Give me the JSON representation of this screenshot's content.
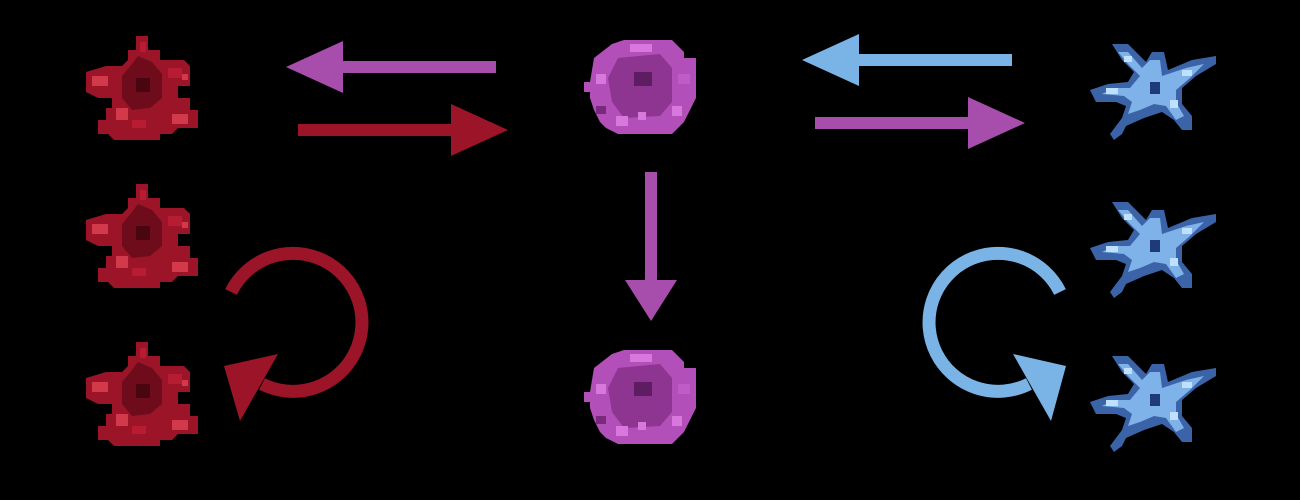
{
  "colors": {
    "background": "#000000",
    "red": "#9b1428",
    "red_dark": "#6e0c1b",
    "red_mid": "#b81c32",
    "red_light": "#d23a4c",
    "purple": "#a74dab",
    "purple_dark": "#7a2a7e",
    "purple_mid": "#b24fb8",
    "purple_light": "#d878dc",
    "blue": "#7ab4e6",
    "blue_dark": "#3b64a8",
    "blue_mid": "#7fb2e8",
    "blue_light": "#bfe0ff"
  },
  "nodes": [
    {
      "id": "red-star-top",
      "shape": "star",
      "color": "red"
    },
    {
      "id": "red-star-middle",
      "shape": "star",
      "color": "red"
    },
    {
      "id": "red-star-bottom",
      "shape": "star",
      "color": "red"
    },
    {
      "id": "purple-orb-top",
      "shape": "orb",
      "color": "purple"
    },
    {
      "id": "purple-orb-bottom",
      "shape": "orb",
      "color": "purple"
    },
    {
      "id": "blue-star-top",
      "shape": "starfish",
      "color": "blue"
    },
    {
      "id": "blue-star-middle",
      "shape": "starfish",
      "color": "blue"
    },
    {
      "id": "blue-star-bottom",
      "shape": "starfish",
      "color": "blue"
    }
  ],
  "edges": [
    {
      "from": "purple-orb-top",
      "to": "red-star-top",
      "color": "purple"
    },
    {
      "from": "red-star-top",
      "to": "purple-orb-top",
      "color": "red"
    },
    {
      "from": "blue-star-top",
      "to": "purple-orb-top",
      "color": "blue"
    },
    {
      "from": "purple-orb-top",
      "to": "blue-star-top",
      "color": "purple"
    },
    {
      "from": "purple-orb-top",
      "to": "purple-orb-bottom",
      "color": "purple"
    }
  ],
  "cycles": [
    {
      "id": "red-cycle",
      "color": "red",
      "direction": "clockwise"
    },
    {
      "id": "blue-cycle",
      "color": "blue",
      "direction": "counterclockwise"
    }
  ]
}
